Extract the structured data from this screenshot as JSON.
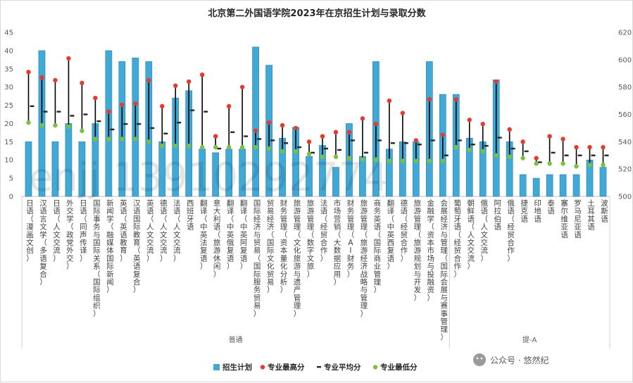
{
  "chart_data": {
    "type": "bar",
    "title": "北京第二外国语学院2023年在京招生计划与录取分数",
    "y_left": {
      "ylim": [
        0,
        45
      ],
      "ticks": [
        0,
        5,
        10,
        15,
        20,
        25,
        30,
        35,
        40,
        45
      ]
    },
    "y_right": {
      "ylim": [
        500,
        620
      ],
      "ticks": [
        500,
        520,
        540,
        560,
        580,
        600,
        620
      ]
    },
    "categories": [
      "日语（漫画文创）",
      "汉语言文学（多语复合）",
      "日语（人文交流）",
      "外交学（政党外交）",
      "日语（同声传译）",
      "国际事务与国际关系（国际组织）",
      "新闻学（融媒体国际新闻）",
      "英语（英语教育）",
      "汉语国际教育（英语复合）",
      "英语（人文交流）",
      "德语（人文交流）",
      "法语（人文交流）",
      "西班牙语",
      "翻译（中英法复语）",
      "意大利语（旅游休闲）",
      "翻译（中英俄复语）",
      "翻译（中英阿复语）",
      "国际经济与贸易（国际服务贸易）",
      "贸易经济（国际文化贸易）",
      "财务管理（资本量化分析）",
      "旅游管理（文化旅游与遗产管理）",
      "旅游管理（数字文旅）",
      "法语（经贸合作）",
      "市场营销（大数据应用）",
      "财务管理（AI财务）",
      "旅游管理（旅游经济战略与管理）",
      "商务英语（国际商业管理）",
      "翻译（中英西复语）",
      "德语（经贸合作）",
      "旅游管理（旅游规划与开发）",
      "金融学（资本市场与投融资）",
      "会展经济与管理（国际会展与赛事管理）",
      "葡萄牙语（经贸合作）",
      "朝鲜语（人文交流）",
      "俄语（人文交流）",
      "阿拉伯语",
      "俄语（经贸合作）",
      "捷克语",
      "印地语",
      "泰语",
      "塞尔维亚语",
      "罗马尼亚语",
      "土耳其语",
      "波斯语"
    ],
    "series": [
      {
        "name": "招生计划",
        "axis": "left",
        "color": "#41a9d6",
        "values": [
          15,
          40,
          15,
          20,
          15,
          20,
          40,
          37,
          38,
          37,
          15,
          27,
          29,
          13,
          12,
          13,
          13,
          41,
          36,
          16,
          19,
          11,
          14,
          8,
          20,
          11,
          37,
          13,
          15,
          15,
          37,
          28,
          28,
          16,
          15,
          32,
          15,
          6,
          5,
          6,
          6,
          6,
          10,
          8
        ]
      },
      {
        "name": "专业最高分",
        "axis": "right",
        "color": "#e03c31",
        "values": [
          591,
          587,
          585,
          601,
          583,
          572,
          562,
          567,
          568,
          585,
          566,
          581,
          584,
          589,
          544,
          566,
          580,
          548,
          554,
          552,
          550,
          540,
          544,
          547,
          547,
          557,
          553,
          570,
          561,
          541,
          571,
          545,
          571,
          556,
          553,
          584,
          549,
          540,
          528,
          544,
          542,
          536,
          536,
          536
        ]
      },
      {
        "name": "专业平均分",
        "axis": "right",
        "color": "#262626",
        "values": [
          566,
          562,
          562,
          559,
          560,
          555,
          549,
          553,
          553,
          550,
          546,
          554,
          563,
          562,
          535,
          547,
          544,
          542,
          541,
          539,
          536,
          532,
          535,
          534,
          541,
          532,
          541,
          539,
          539,
          538,
          541,
          530,
          541,
          538,
          537,
          543,
          535,
          533,
          525,
          532,
          530,
          530,
          530,
          530
        ]
      },
      {
        "name": "专业最低分",
        "axis": "right",
        "color": "#7bc043",
        "values": [
          554,
          552,
          552,
          551,
          548,
          542,
          542,
          542,
          542,
          540,
          537,
          537,
          537,
          536,
          536,
          536,
          536,
          536,
          535,
          533,
          533,
          531,
          529,
          529,
          528,
          527,
          527,
          526,
          526,
          526,
          526,
          526,
          536,
          534,
          533,
          530,
          529,
          528,
          524,
          524,
          524,
          522,
          523,
          523
        ]
      }
    ],
    "groups": [
      {
        "label": "普通",
        "from": 0,
        "to": 31
      },
      {
        "label": "提-A",
        "from": 32,
        "to": 43
      }
    ],
    "legend": [
      "招生计划",
      "专业最高分",
      "专业平均分",
      "专业最低分"
    ],
    "legend_position": "bottom",
    "grid": false
  },
  "watermark": {
    "brand": "公众号 · 悠然纪",
    "overlay": "enjj 13910292774"
  }
}
